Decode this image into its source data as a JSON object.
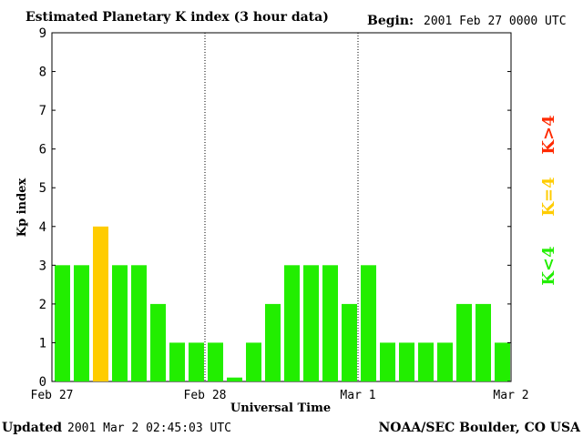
{
  "title": "Estimated Planetary K index (3 hour data)",
  "begin_label": "Begin:",
  "begin_value": "2001 Feb 27 0000 UTC",
  "footer_left_label": "Updated",
  "footer_left_value": "2001 Mar  2 02:45:03 UTC",
  "footer_right": "NOAA/SEC Boulder, CO USA",
  "legend": [
    {
      "label": "K>4",
      "color": "#ff2a00"
    },
    {
      "label": "K=4",
      "color": "#ffcc00"
    },
    {
      "label": "K<4",
      "color": "#22ee00"
    }
  ],
  "chart_data": {
    "type": "bar",
    "title": "Estimated Planetary K index (3 hour data)",
    "xlabel": "Universal Time",
    "ylabel": "Kp index",
    "ylim": [
      0,
      9
    ],
    "yticks": [
      "0",
      "1",
      "2",
      "3",
      "4",
      "5",
      "6",
      "7",
      "8",
      "9"
    ],
    "xtick_labels": [
      "Feb 27",
      "Feb 28",
      "Mar 1",
      "Mar 2"
    ],
    "x_start": "2001-02-27 00:00 UTC",
    "bar_interval_hours": 3,
    "values": [
      3,
      3,
      4,
      3,
      3,
      2,
      1,
      1,
      1,
      0.1,
      1,
      2,
      3,
      3,
      3,
      2,
      3,
      1,
      1,
      1,
      1,
      2,
      2,
      1
    ],
    "colors": {
      "below4": "#22ee00",
      "equal4": "#ffcc00",
      "above4": "#ff2a00"
    },
    "day_separators": "dotted vertical lines at day boundaries"
  }
}
